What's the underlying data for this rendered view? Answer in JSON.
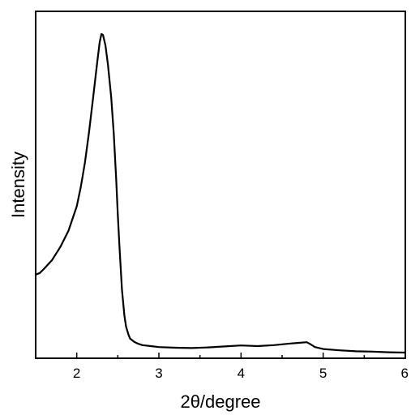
{
  "chart_data": {
    "type": "line",
    "title": "",
    "xlabel": "2θ/degree",
    "ylabel": "Intensity",
    "xlim": [
      1.5,
      6
    ],
    "ylim": [
      0,
      1
    ],
    "y_ticks_shown": false,
    "grid": false,
    "legend": "none",
    "x_ticks": [
      2,
      3,
      4,
      5,
      6
    ],
    "x_tick_labels": [
      "2",
      "3",
      "4",
      "5",
      "6"
    ],
    "series": [
      {
        "color": "#000000",
        "x": [
          1.5,
          1.55,
          1.6,
          1.7,
          1.8,
          1.9,
          2.0,
          2.05,
          2.1,
          2.15,
          2.2,
          2.25,
          2.28,
          2.3,
          2.32,
          2.35,
          2.38,
          2.4,
          2.42,
          2.45,
          2.48,
          2.5,
          2.52,
          2.55,
          2.58,
          2.6,
          2.63,
          2.65,
          2.7,
          2.75,
          2.8,
          2.9,
          3.0,
          3.2,
          3.4,
          3.6,
          3.8,
          4.0,
          4.2,
          4.4,
          4.6,
          4.7,
          4.8,
          4.85,
          4.9,
          5.0,
          5.2,
          5.4,
          5.6,
          5.8,
          6.0
        ],
        "y": [
          0.245,
          0.25,
          0.262,
          0.29,
          0.33,
          0.38,
          0.455,
          0.515,
          0.59,
          0.685,
          0.79,
          0.9,
          0.96,
          0.985,
          0.982,
          0.95,
          0.89,
          0.84,
          0.79,
          0.68,
          0.54,
          0.43,
          0.33,
          0.2,
          0.12,
          0.085,
          0.06,
          0.048,
          0.038,
          0.032,
          0.028,
          0.025,
          0.022,
          0.02,
          0.019,
          0.021,
          0.024,
          0.027,
          0.025,
          0.028,
          0.033,
          0.035,
          0.037,
          0.03,
          0.022,
          0.016,
          0.012,
          0.009,
          0.008,
          0.006,
          0.005
        ]
      }
    ]
  }
}
